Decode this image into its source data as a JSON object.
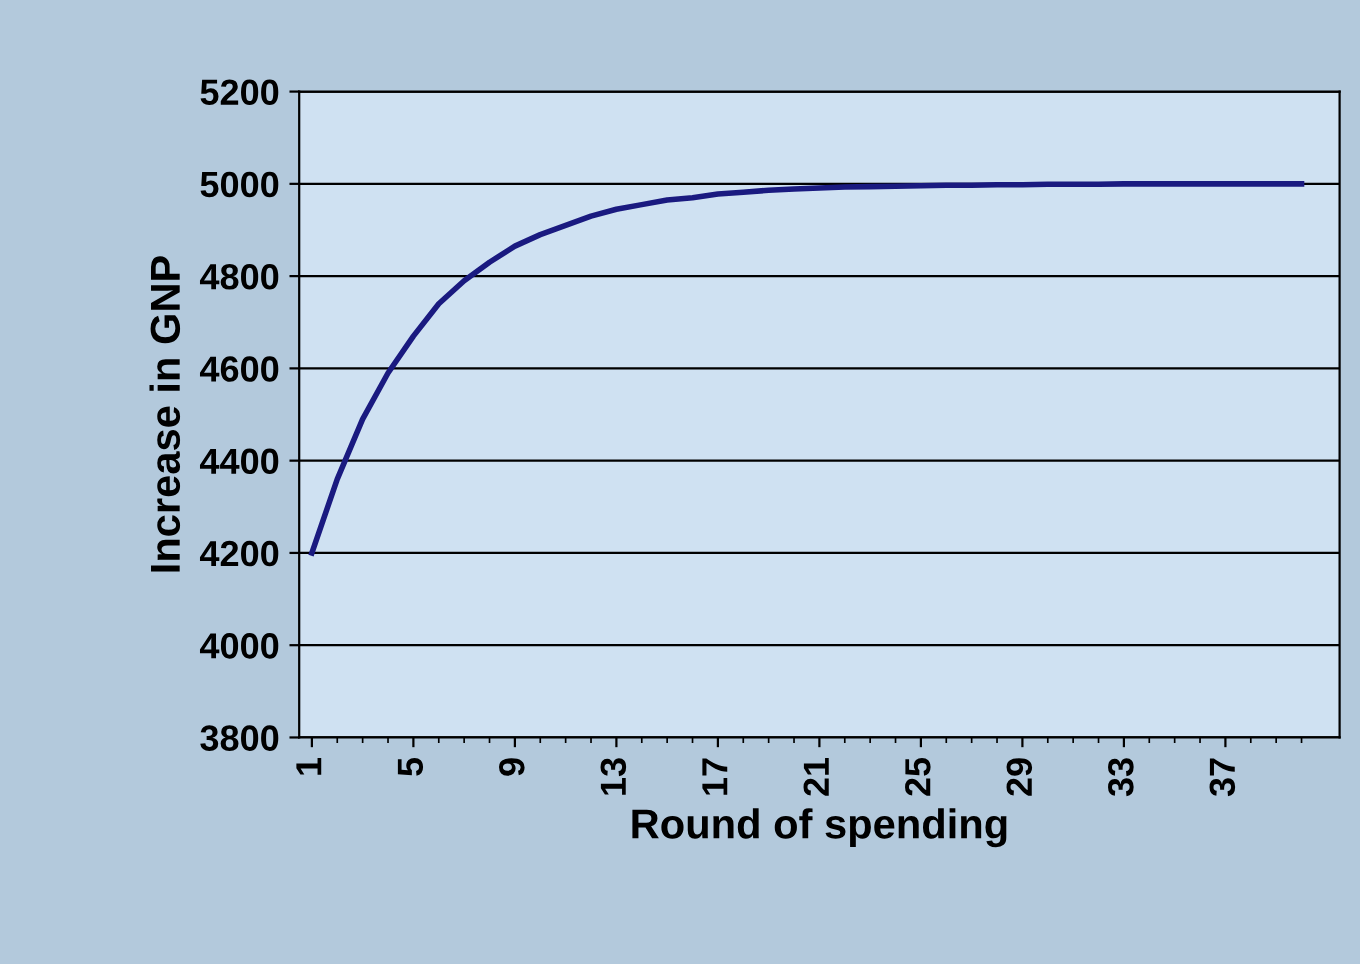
{
  "chart_data": {
    "type": "line",
    "xlabel": "Round of spending",
    "ylabel": "Increase in GNP",
    "categories": [
      "1",
      null,
      null,
      null,
      "5",
      null,
      null,
      null,
      "9",
      null,
      null,
      null,
      "13",
      null,
      null,
      null,
      "17",
      null,
      null,
      null,
      "21",
      null,
      null,
      null,
      "25",
      null,
      null,
      null,
      "29",
      null,
      null,
      null,
      "33",
      null,
      null,
      null,
      "37",
      null,
      null,
      null
    ],
    "series": [
      {
        "color": "#1a1a80",
        "values": [
          4200,
          4360,
          4490,
          4590,
          4670,
          4740,
          4790,
          4830,
          4865,
          4890,
          4910,
          4930,
          4945,
          4955,
          4965,
          4970,
          4978,
          4982,
          4986,
          4989,
          4991,
          4993,
          4994,
          4995,
          4996,
          4997,
          4997,
          4998,
          4998,
          4999,
          4999,
          4999,
          5000,
          5000,
          5000,
          5000,
          5000,
          5000,
          5000,
          5000
        ]
      }
    ],
    "ylim": [
      3800,
      5200
    ],
    "yticks": [
      3800,
      4000,
      4200,
      4400,
      4600,
      4800,
      5000,
      5200
    ],
    "grid": "y",
    "legend": false,
    "marker": "none",
    "line_style": "solid"
  }
}
